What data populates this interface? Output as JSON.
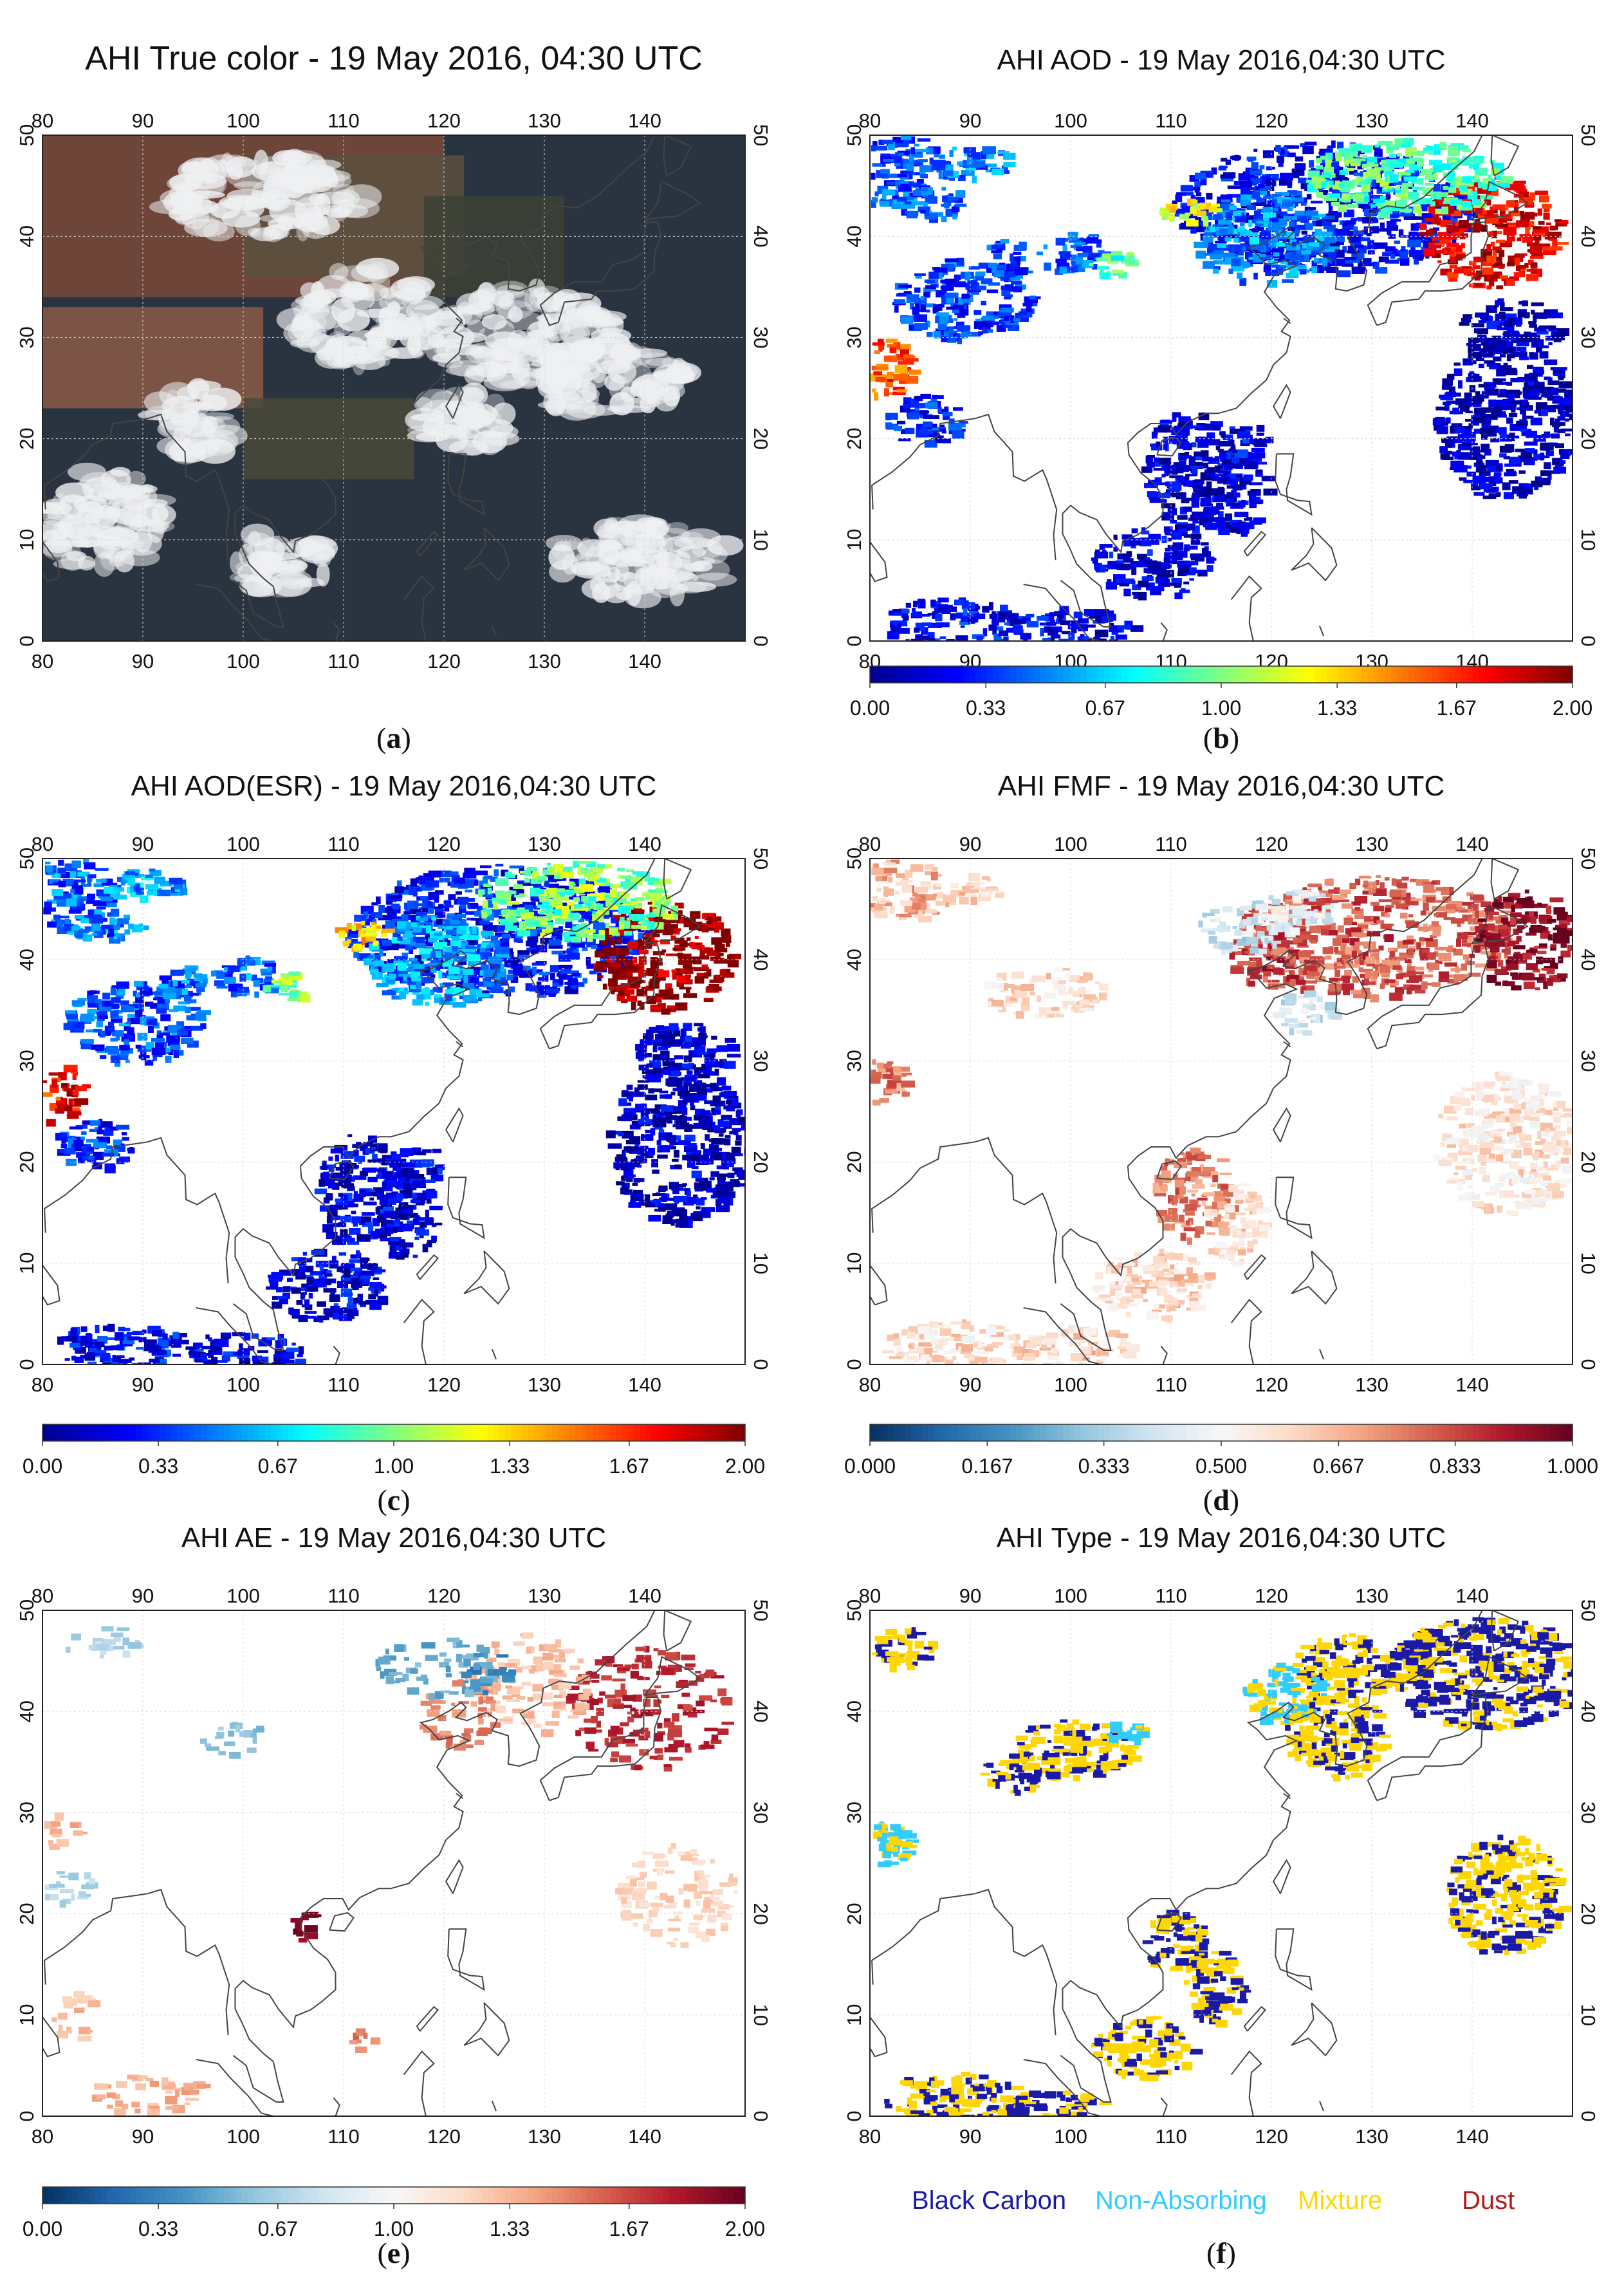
{
  "colors": {
    "jet": [
      "#00008f",
      "#0000ff",
      "#0080ff",
      "#00ffff",
      "#80ff80",
      "#ffff00",
      "#ff8000",
      "#ff0000",
      "#800000"
    ],
    "rdbu": [
      "#053061",
      "#2166ac",
      "#4393c3",
      "#92c5de",
      "#d1e5f0",
      "#f7f7f7",
      "#fddbc7",
      "#f4a582",
      "#d6604d",
      "#b2182b",
      "#67001f"
    ],
    "coast": "#444444",
    "grid": "#d8d8d8",
    "aerosol_types": [
      "#1a1aa6",
      "#33ccff",
      "#ffd700",
      "#b01a1a"
    ]
  },
  "chart_data": [
    {
      "panel": "a",
      "type": "heatmap",
      "variable": "true_color",
      "title": "AHI True color - 19 May 2016, 04:30 UTC",
      "label_open": "(",
      "label_letter": "a",
      "label_close": ")",
      "xlim": [
        80,
        150
      ],
      "ylim": [
        0,
        50
      ],
      "x_ticks": [
        80,
        90,
        100,
        110,
        120,
        130,
        140
      ],
      "y_ticks": [
        0,
        10,
        20,
        30,
        40,
        50
      ],
      "colorbar": null
    },
    {
      "panel": "b",
      "type": "heatmap",
      "variable": "aod",
      "title": "AHI AOD - 19 May 2016,04:30 UTC",
      "label_open": "(",
      "label_letter": "b",
      "label_close": ")",
      "xlim": [
        80,
        150
      ],
      "ylim": [
        0,
        50
      ],
      "x_ticks": [
        80,
        90,
        100,
        110,
        120,
        130,
        140
      ],
      "y_ticks": [
        0,
        10,
        20,
        30,
        40,
        50
      ],
      "colorbar": {
        "cmap": "jet",
        "range": [
          0,
          2
        ],
        "tick_values": [
          0,
          0.33,
          0.67,
          1.0,
          1.33,
          1.67,
          2.0
        ],
        "tick_labels": [
          "0.00",
          "0.33",
          "0.67",
          "1.00",
          "1.33",
          "1.67",
          "2.00"
        ]
      }
    },
    {
      "panel": "c",
      "type": "heatmap",
      "variable": "aod_esr",
      "title": "AHI AOD(ESR) - 19 May 2016,04:30 UTC",
      "label_open": "(",
      "label_letter": "c",
      "label_close": ")",
      "xlim": [
        80,
        150
      ],
      "ylim": [
        0,
        50
      ],
      "x_ticks": [
        80,
        90,
        100,
        110,
        120,
        130,
        140
      ],
      "y_ticks": [
        0,
        10,
        20,
        30,
        40,
        50
      ],
      "colorbar": {
        "cmap": "jet",
        "range": [
          0,
          2
        ],
        "tick_values": [
          0,
          0.33,
          0.67,
          1.0,
          1.33,
          1.67,
          2.0
        ],
        "tick_labels": [
          "0.00",
          "0.33",
          "0.67",
          "1.00",
          "1.33",
          "1.67",
          "2.00"
        ]
      }
    },
    {
      "panel": "d",
      "type": "heatmap",
      "variable": "fmf",
      "title": "AHI FMF - 19 May 2016,04:30 UTC",
      "label_open": "(",
      "label_letter": "d",
      "label_close": ")",
      "xlim": [
        80,
        150
      ],
      "ylim": [
        0,
        50
      ],
      "x_ticks": [
        80,
        90,
        100,
        110,
        120,
        130,
        140
      ],
      "y_ticks": [
        0,
        10,
        20,
        30,
        40,
        50
      ],
      "colorbar": {
        "cmap": "rdbu",
        "range": [
          0,
          1
        ],
        "tick_values": [
          0,
          0.167,
          0.333,
          0.5,
          0.667,
          0.833,
          1.0
        ],
        "tick_labels": [
          "0.000",
          "0.167",
          "0.333",
          "0.500",
          "0.667",
          "0.833",
          "1.000"
        ]
      }
    },
    {
      "panel": "e",
      "type": "heatmap",
      "variable": "ae",
      "title": "AHI AE - 19 May 2016,04:30 UTC",
      "label_open": "(",
      "label_letter": "e",
      "label_close": ")",
      "xlim": [
        80,
        150
      ],
      "ylim": [
        0,
        50
      ],
      "x_ticks": [
        80,
        90,
        100,
        110,
        120,
        130,
        140
      ],
      "y_ticks": [
        0,
        10,
        20,
        30,
        40,
        50
      ],
      "colorbar": {
        "cmap": "rdbu",
        "range": [
          0,
          2
        ],
        "tick_values": [
          0,
          0.33,
          0.67,
          1.0,
          1.33,
          1.67,
          2.0
        ],
        "tick_labels": [
          "0.00",
          "0.33",
          "0.67",
          "1.00",
          "1.33",
          "1.67",
          "2.00"
        ]
      }
    },
    {
      "panel": "f",
      "type": "heatmap",
      "variable": "aerosol_type",
      "title": "AHI Type - 19 May 2016,04:30 UTC",
      "label_open": "(",
      "label_letter": "f",
      "label_close": ")",
      "xlim": [
        80,
        150
      ],
      "ylim": [
        0,
        50
      ],
      "x_ticks": [
        80,
        90,
        100,
        110,
        120,
        130,
        140
      ],
      "y_ticks": [
        0,
        10,
        20,
        30,
        40,
        50
      ],
      "colorbar": null,
      "legend": [
        {
          "label": "Black Carbon",
          "color": "#1a1aa6"
        },
        {
          "label": "Non-Absorbing",
          "color": "#33ccff"
        },
        {
          "label": "Mixture",
          "color": "#ffd700"
        },
        {
          "label": "Dust",
          "color": "#b01a1a"
        }
      ]
    }
  ]
}
